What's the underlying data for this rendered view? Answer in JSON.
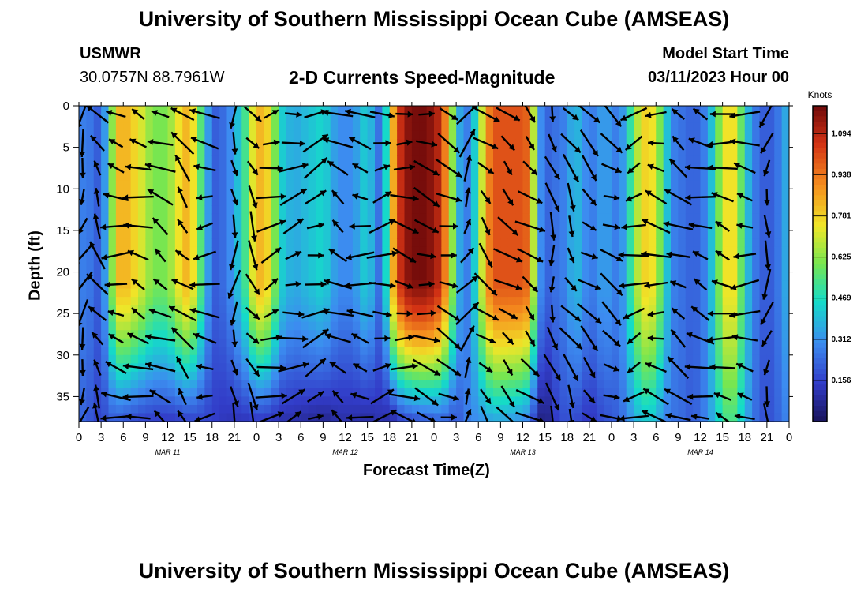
{
  "header": {
    "title": "University of Southern Mississippi Ocean Cube (AMSEAS)",
    "station": "USMWR",
    "coords": "30.0757N  88.7961W",
    "plot_title": "2-D Currents Speed-Magnitude",
    "start_label": "Model Start Time",
    "start_value": "03/11/2023 Hour 00"
  },
  "footer": {
    "title": "University of Southern Mississippi Ocean Cube (AMSEAS)"
  },
  "chart_data": {
    "type": "heatmap",
    "xlabel": "Forecast Time(Z)",
    "ylabel": "Depth (ft)",
    "x_tick_labels": [
      "0",
      "3",
      "6",
      "9",
      "12",
      "15",
      "18",
      "21",
      "0",
      "3",
      "6",
      "9",
      "12",
      "15",
      "18",
      "21",
      "0",
      "3",
      "6",
      "9",
      "12",
      "15",
      "18",
      "21",
      "0",
      "3",
      "6",
      "9",
      "12",
      "15",
      "18",
      "21",
      "0"
    ],
    "x_range_hours": [
      0,
      96
    ],
    "date_labels": [
      {
        "text": "MAR 11",
        "hour": 12
      },
      {
        "text": "MAR 12",
        "hour": 36
      },
      {
        "text": "MAR 13",
        "hour": 60
      },
      {
        "text": "MAR 14",
        "hour": 84
      }
    ],
    "y_ticks": [
      0,
      5,
      10,
      15,
      20,
      25,
      30,
      35
    ],
    "y_tick_labels": [
      "0",
      "5",
      "10",
      "15",
      "20",
      "25",
      "30",
      "35"
    ],
    "ylim": [
      0,
      38
    ],
    "y_inverted": true,
    "colorbar": {
      "title": "Knots",
      "ticks": [
        0.156,
        0.312,
        0.469,
        0.625,
        0.781,
        0.938,
        1.094
      ],
      "tick_labels": [
        "0.156",
        "0.312",
        "0.469",
        "0.625",
        "0.781",
        "0.938",
        "1.094"
      ],
      "range": [
        0,
        1.2
      ],
      "colormap": "jet"
    },
    "speed_bands": [
      {
        "hour": 0,
        "surface": 0.25,
        "bottom": 0.22
      },
      {
        "hour": 1,
        "surface": 0.3,
        "bottom": 0.22
      },
      {
        "hour": 2,
        "surface": 0.22,
        "bottom": 0.17
      },
      {
        "hour": 3,
        "surface": 0.2,
        "bottom": 0.15
      },
      {
        "hour": 4,
        "surface": 0.45,
        "bottom": 0.2
      },
      {
        "hour": 5,
        "surface": 0.8,
        "bottom": 0.2
      },
      {
        "hour": 6,
        "surface": 0.85,
        "bottom": 0.18
      },
      {
        "hour": 8,
        "surface": 0.75,
        "bottom": 0.15
      },
      {
        "hour": 10,
        "surface": 0.6,
        "bottom": 0.14
      },
      {
        "hour": 12,
        "surface": 0.6,
        "bottom": 0.13
      },
      {
        "hour": 14,
        "surface": 0.8,
        "bottom": 0.14
      },
      {
        "hour": 15,
        "surface": 0.85,
        "bottom": 0.15
      },
      {
        "hour": 17,
        "surface": 0.45,
        "bottom": 0.16
      },
      {
        "hour": 18,
        "surface": 0.2,
        "bottom": 0.15
      },
      {
        "hour": 20,
        "surface": 0.25,
        "bottom": 0.12
      },
      {
        "hour": 21,
        "surface": 0.35,
        "bottom": 0.12
      },
      {
        "hour": 22,
        "surface": 0.45,
        "bottom": 0.12
      },
      {
        "hour": 23,
        "surface": 0.6,
        "bottom": 0.12
      },
      {
        "hour": 24,
        "surface": 0.85,
        "bottom": 0.13
      },
      {
        "hour": 26,
        "surface": 0.75,
        "bottom": 0.12
      },
      {
        "hour": 27,
        "surface": 0.45,
        "bottom": 0.1
      },
      {
        "hour": 29,
        "surface": 0.35,
        "bottom": 0.1
      },
      {
        "hour": 31,
        "surface": 0.4,
        "bottom": 0.08
      },
      {
        "hour": 33,
        "surface": 0.45,
        "bottom": 0.06
      },
      {
        "hour": 35,
        "surface": 0.3,
        "bottom": 0.1
      },
      {
        "hour": 37,
        "surface": 0.3,
        "bottom": 0.1
      },
      {
        "hour": 39,
        "surface": 0.45,
        "bottom": 0.08
      },
      {
        "hour": 40,
        "surface": 0.3,
        "bottom": 0.1
      },
      {
        "hour": 41,
        "surface": 0.2,
        "bottom": 0.12
      },
      {
        "hour": 42,
        "surface": 0.7,
        "bottom": 0.06
      },
      {
        "hour": 43,
        "surface": 1.0,
        "bottom": 0.12
      },
      {
        "hour": 44,
        "surface": 1.15,
        "bottom": 0.15
      },
      {
        "hour": 46,
        "surface": 1.2,
        "bottom": 0.18
      },
      {
        "hour": 48,
        "surface": 1.15,
        "bottom": 0.2
      },
      {
        "hour": 49,
        "surface": 1.05,
        "bottom": 0.22
      },
      {
        "hour": 50,
        "surface": 0.8,
        "bottom": 0.2
      },
      {
        "hour": 51,
        "surface": 0.45,
        "bottom": 0.18
      },
      {
        "hour": 52,
        "surface": 0.25,
        "bottom": 0.25
      },
      {
        "hour": 53,
        "surface": 0.3,
        "bottom": 0.3
      },
      {
        "hour": 54,
        "surface": 0.55,
        "bottom": 0.3
      },
      {
        "hour": 55,
        "surface": 0.85,
        "bottom": 0.32
      },
      {
        "hour": 56,
        "surface": 1.0,
        "bottom": 0.35
      },
      {
        "hour": 58,
        "surface": 1.0,
        "bottom": 0.33
      },
      {
        "hour": 60,
        "surface": 1.0,
        "bottom": 0.3
      },
      {
        "hour": 61,
        "surface": 0.95,
        "bottom": 0.25
      },
      {
        "hour": 62,
        "surface": 0.4,
        "bottom": 0.08
      },
      {
        "hour": 63,
        "surface": 0.2,
        "bottom": 0.03
      },
      {
        "hour": 64,
        "surface": 0.25,
        "bottom": 0.1
      },
      {
        "hour": 65,
        "surface": 0.25,
        "bottom": 0.18
      },
      {
        "hour": 66,
        "surface": 0.3,
        "bottom": 0.18
      },
      {
        "hour": 67,
        "surface": 0.4,
        "bottom": 0.18
      },
      {
        "hour": 68,
        "surface": 0.35,
        "bottom": 0.15
      },
      {
        "hour": 69,
        "surface": 0.25,
        "bottom": 0.12
      },
      {
        "hour": 70,
        "surface": 0.3,
        "bottom": 0.15
      },
      {
        "hour": 71,
        "surface": 0.35,
        "bottom": 0.18
      },
      {
        "hour": 72,
        "surface": 0.3,
        "bottom": 0.2
      },
      {
        "hour": 73,
        "surface": 0.25,
        "bottom": 0.22
      },
      {
        "hour": 74,
        "surface": 0.4,
        "bottom": 0.28
      },
      {
        "hour": 75,
        "surface": 0.6,
        "bottom": 0.35
      },
      {
        "hour": 76,
        "surface": 0.75,
        "bottom": 0.4
      },
      {
        "hour": 77,
        "surface": 0.8,
        "bottom": 0.42
      },
      {
        "hour": 78,
        "surface": 0.7,
        "bottom": 0.38
      },
      {
        "hour": 79,
        "surface": 0.5,
        "bottom": 0.3
      },
      {
        "hour": 80,
        "surface": 0.3,
        "bottom": 0.25
      },
      {
        "hour": 81,
        "surface": 0.25,
        "bottom": 0.25
      },
      {
        "hour": 82,
        "surface": 0.25,
        "bottom": 0.22
      },
      {
        "hour": 83,
        "surface": 0.2,
        "bottom": 0.2
      },
      {
        "hour": 84,
        "surface": 0.25,
        "bottom": 0.25
      },
      {
        "hour": 85,
        "surface": 0.3,
        "bottom": 0.3
      },
      {
        "hour": 86,
        "surface": 0.5,
        "bottom": 0.4
      },
      {
        "hour": 87,
        "surface": 0.7,
        "bottom": 0.5
      },
      {
        "hour": 88,
        "surface": 0.8,
        "bottom": 0.55
      },
      {
        "hour": 89,
        "surface": 0.7,
        "bottom": 0.5
      },
      {
        "hour": 90,
        "surface": 0.45,
        "bottom": 0.38
      },
      {
        "hour": 91,
        "surface": 0.3,
        "bottom": 0.28
      },
      {
        "hour": 92,
        "surface": 0.22,
        "bottom": 0.2
      },
      {
        "hour": 93,
        "surface": 0.2,
        "bottom": 0.18
      },
      {
        "hour": 94,
        "surface": 0.22,
        "bottom": 0.2
      },
      {
        "hour": 95,
        "surface": 0.3,
        "bottom": 0.25
      },
      {
        "hour": 96,
        "surface": 0.4,
        "bottom": 0.3
      }
    ],
    "vector_columns": [
      {
        "hour": 0.5,
        "angle_deg": 250
      },
      {
        "hour": 2.5,
        "angle_deg": 120
      },
      {
        "hour": 5,
        "angle_deg": 170
      },
      {
        "hour": 8,
        "angle_deg": 160
      },
      {
        "hour": 11,
        "angle_deg": 150
      },
      {
        "hour": 14,
        "angle_deg": 135
      },
      {
        "hour": 17,
        "angle_deg": 180
      },
      {
        "hour": 21,
        "angle_deg": 270
      },
      {
        "hour": 23.5,
        "angle_deg": 300
      },
      {
        "hour": 26,
        "angle_deg": 20
      },
      {
        "hour": 29,
        "angle_deg": 15
      },
      {
        "hour": 32,
        "angle_deg": 20
      },
      {
        "hour": 35,
        "angle_deg": 150
      },
      {
        "hour": 38,
        "angle_deg": 170
      },
      {
        "hour": 41,
        "angle_deg": 10
      },
      {
        "hour": 44,
        "angle_deg": 350
      },
      {
        "hour": 47,
        "angle_deg": 345
      },
      {
        "hour": 50,
        "angle_deg": 340
      },
      {
        "hour": 52.5,
        "angle_deg": 60
      },
      {
        "hour": 55,
        "angle_deg": 315
      },
      {
        "hour": 58,
        "angle_deg": 320
      },
      {
        "hour": 61,
        "angle_deg": 320
      },
      {
        "hour": 64,
        "angle_deg": 280
      },
      {
        "hour": 66.5,
        "angle_deg": 300
      },
      {
        "hour": 69,
        "angle_deg": 320
      },
      {
        "hour": 72,
        "angle_deg": 330
      },
      {
        "hour": 75,
        "angle_deg": 200
      },
      {
        "hour": 78,
        "angle_deg": 170
      },
      {
        "hour": 81,
        "angle_deg": 150
      },
      {
        "hour": 84,
        "angle_deg": 160
      },
      {
        "hour": 87,
        "angle_deg": 165
      },
      {
        "hour": 90,
        "angle_deg": 175
      },
      {
        "hour": 93,
        "angle_deg": 260
      }
    ]
  }
}
